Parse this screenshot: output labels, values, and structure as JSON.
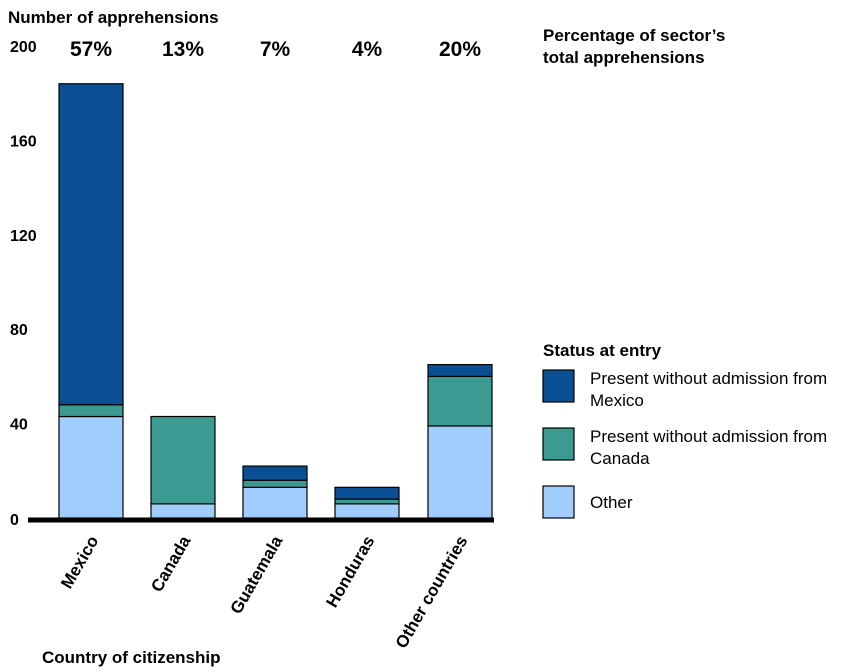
{
  "chart_data": {
    "type": "bar",
    "stacked": true,
    "ylabel": "Number of apprehensions",
    "xlabel": "Country of citizenship",
    "ylim": [
      0,
      200
    ],
    "yticks": [
      0,
      40,
      80,
      120,
      160,
      200
    ],
    "categories": [
      "Mexico",
      "Canada",
      "Guatemala",
      "Honduras",
      "Other countries"
    ],
    "percent_title": [
      "Percentage of sector’s",
      "total apprehensions"
    ],
    "percent_labels": [
      "57%",
      "13%",
      "7%",
      "4%",
      "20%"
    ],
    "legend_title": "Status at entry",
    "series": [
      {
        "name": "Other",
        "color": "#a0cdfc",
        "values": [
          43,
          6,
          13,
          6,
          39
        ]
      },
      {
        "name": "Present without admission from Canada",
        "color": "#3b9a92",
        "values": [
          5,
          37,
          3,
          2,
          21
        ]
      },
      {
        "name": "Present without admission from Mexico",
        "color": "#0a4f94",
        "values": [
          136,
          0,
          6,
          5,
          5
        ]
      }
    ],
    "legend": [
      {
        "lines": [
          "Present without admission from",
          "Mexico"
        ],
        "color": "#0a4f94"
      },
      {
        "lines": [
          "Present without admission from",
          "Canada"
        ],
        "color": "#3b9a92"
      },
      {
        "lines": [
          "Other"
        ],
        "color": "#a0cdfc"
      }
    ]
  }
}
